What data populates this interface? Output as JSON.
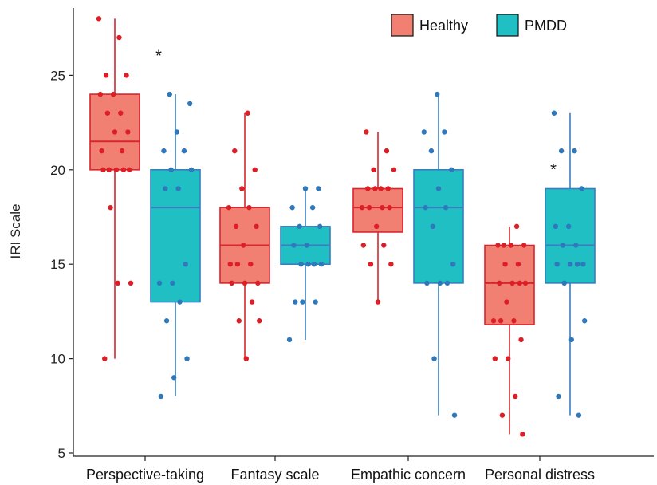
{
  "chart_data": {
    "type": "box",
    "ylabel": "IRI Scale",
    "xlabel": "",
    "ylim": [
      5,
      29
    ],
    "yticks": [
      5,
      10,
      15,
      20,
      25
    ],
    "categories": [
      "Perspective-taking",
      "Fantasy scale",
      "Empathic concern",
      "Personal distress"
    ],
    "legend": {
      "position": "top-right"
    },
    "colors": {
      "Healthy": {
        "fill": "#f28072",
        "line": "#d7262e",
        "point": "#dc1f26"
      },
      "PMDD": {
        "fill": "#1fbfc3",
        "line": "#3a7ec0",
        "point": "#2f78bb"
      }
    },
    "series": [
      {
        "name": "Healthy",
        "boxes": [
          {
            "min": 10,
            "q1": 20,
            "median": 21.5,
            "q3": 24,
            "max": 28
          },
          {
            "min": 10,
            "q1": 14,
            "median": 16,
            "q3": 18,
            "max": 23
          },
          {
            "min": 13,
            "q1": 16.7,
            "median": 18,
            "q3": 19,
            "max": 22
          },
          {
            "min": 6,
            "q1": 11.8,
            "median": 14,
            "q3": 16,
            "max": 17
          }
        ],
        "points": [
          [
            28,
            27,
            25,
            25,
            24,
            24,
            23,
            23,
            22,
            22,
            21,
            21,
            20,
            20,
            20,
            20,
            20,
            18,
            14,
            14,
            10
          ],
          [
            23,
            21,
            20,
            19,
            18,
            18,
            17,
            17,
            16,
            15,
            15,
            15,
            14,
            14,
            14,
            13,
            12,
            12,
            10
          ],
          [
            22,
            21,
            20,
            20,
            19,
            19,
            19,
            19,
            18,
            18,
            18,
            18,
            17,
            16,
            16,
            15,
            15,
            13
          ],
          [
            17,
            16,
            16,
            16,
            16,
            15,
            15,
            14,
            14,
            14,
            14,
            13,
            12,
            12,
            12,
            11,
            10,
            10,
            8,
            7,
            6
          ]
        ]
      },
      {
        "name": "PMDD",
        "boxes": [
          {
            "min": 8,
            "q1": 13,
            "median": 18,
            "q3": 20,
            "max": 24
          },
          {
            "min": 11,
            "q1": 15,
            "median": 16,
            "q3": 17,
            "max": 19
          },
          {
            "min": 7,
            "q1": 14,
            "median": 18,
            "q3": 20,
            "max": 24
          },
          {
            "min": 7,
            "q1": 14,
            "median": 16,
            "q3": 19,
            "max": 23
          }
        ],
        "points": [
          [
            24,
            23.5,
            22,
            21,
            21,
            20,
            20,
            19,
            19,
            15,
            14,
            14,
            13,
            12,
            10,
            9,
            8
          ],
          [
            19,
            19,
            18,
            18,
            17,
            17,
            16,
            16,
            15,
            15,
            15,
            15,
            13,
            13,
            13,
            11
          ],
          [
            24,
            22,
            22,
            21,
            20,
            19,
            18,
            18,
            17,
            15,
            14,
            14,
            14,
            10,
            7
          ],
          [
            23,
            21,
            21,
            19,
            17,
            17,
            16,
            16,
            15,
            15,
            15,
            15,
            14,
            12,
            11,
            8,
            7
          ]
        ]
      }
    ],
    "annotations": [
      {
        "category": "Perspective-taking",
        "text": "*",
        "y": 26
      },
      {
        "category": "Personal distress",
        "text": "*",
        "y": 20
      }
    ]
  }
}
